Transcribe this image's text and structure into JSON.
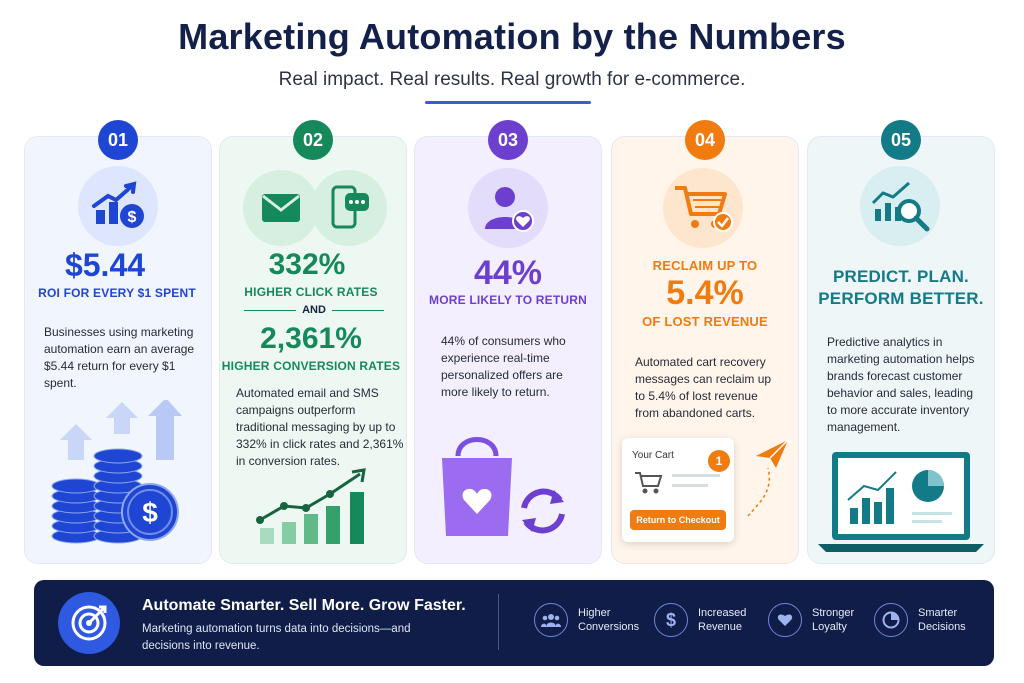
{
  "header": {
    "title": "Marketing Automation by the Numbers",
    "subtitle": "Real impact. Real results. Real growth for e-commerce."
  },
  "cards": [
    {
      "number": "01",
      "accent": "#1f45d3",
      "stat": "$5.44",
      "label": "ROI FOR EVERY $1 SPENT",
      "description": [
        "Businesses using marketing",
        "automation earn an average",
        "$5.44 return for every $1",
        "spent."
      ],
      "icons": [
        "rising-chart-dollar-icon",
        "coin-stack-icon"
      ]
    },
    {
      "number": "02",
      "accent": "#16895a",
      "stat": "332%",
      "label": "HIGHER CLICK RATES",
      "connector": "AND",
      "stat2": "2,361%",
      "label2": "HIGHER CONVERSION RATES",
      "description": [
        "Automated email and SMS",
        "campaigns outperform",
        "traditional messaging by up to",
        "332% in click rates and 2,361%",
        "in conversion rates."
      ],
      "icons": [
        "email-icon",
        "sms-phone-icon",
        "growth-bar-chart-icon"
      ]
    },
    {
      "number": "03",
      "accent": "#6d3fcf",
      "stat": "44%",
      "label": "MORE LIKELY TO RETURN",
      "description": [
        "44% of consumers who",
        "experience real-time",
        "personalized offers are",
        "more likely to return."
      ],
      "icons": [
        "customer-heart-icon",
        "shopping-bag-icon",
        "return-arrows-icon"
      ]
    },
    {
      "number": "04",
      "accent": "#f07b0e",
      "pre": "RECLAIM UP TO",
      "stat": "5.4%",
      "label": "OF LOST REVENUE",
      "description": [
        "Automated cart recovery",
        "messages can reclaim up",
        "to 5.4% of lost revenue",
        "from abandoned carts."
      ],
      "cart_widget": {
        "title": "Your Cart",
        "badge": "1",
        "button": "Return to Checkout"
      },
      "icons": [
        "cart-check-icon",
        "paper-plane-icon"
      ]
    },
    {
      "number": "05",
      "accent": "#137a87",
      "stat_line1": "PREDICT. PLAN.",
      "stat_line2": "PERFORM BETTER.",
      "description": [
        "Predictive analytics in",
        "marketing automation helps",
        "brands forecast customer",
        "behavior and sales, leading",
        "to more accurate inventory",
        "management."
      ],
      "icons": [
        "analytics-magnifier-icon",
        "dashboard-laptop-icon"
      ]
    }
  ],
  "footer": {
    "title": "Automate Smarter. Sell More. Grow Faster.",
    "text": "Marketing automation turns data into decisions—and decisions into revenue.",
    "items": [
      {
        "label": "Higher Conversions",
        "icon": "people-icon"
      },
      {
        "label": "Increased Revenue",
        "icon": "dollar-icon"
      },
      {
        "label": "Stronger Loyalty",
        "icon": "heart-icon"
      },
      {
        "label": "Smarter Decisions",
        "icon": "pie-icon"
      }
    ]
  }
}
